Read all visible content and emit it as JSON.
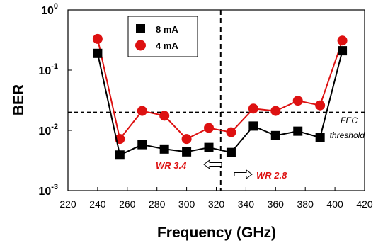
{
  "chart_data": {
    "type": "line",
    "xlabel": "Frequency (GHz)",
    "ylabel": "BER",
    "yscale": "log",
    "xlim": [
      220,
      420
    ],
    "ylim": [
      0.001,
      1
    ],
    "x_ticks": [
      220,
      240,
      260,
      280,
      300,
      320,
      340,
      360,
      380,
      400,
      420
    ],
    "y_ticks": [
      {
        "base": "10",
        "exp": "0",
        "value": 1
      },
      {
        "base": "10",
        "exp": "-1",
        "value": 0.1
      },
      {
        "base": "10",
        "exp": "-2",
        "value": 0.01
      },
      {
        "base": "10",
        "exp": "-3",
        "value": 0.001
      }
    ],
    "series": [
      {
        "name": "8 mA",
        "color": "#000000",
        "marker": "square",
        "points": [
          [
            240,
            0.19
          ],
          [
            255,
            0.0039
          ],
          [
            270,
            0.0058
          ],
          [
            285,
            0.0049
          ],
          [
            300,
            0.0044
          ],
          [
            315,
            0.0052
          ],
          [
            330,
            0.0043
          ],
          [
            345,
            0.0118
          ],
          [
            360,
            0.0082
          ],
          [
            375,
            0.0097
          ],
          [
            390,
            0.0076
          ],
          [
            405,
            0.21
          ]
        ]
      },
      {
        "name": "4 mA",
        "color": "#dd1111",
        "marker": "circle",
        "points": [
          [
            240,
            0.33
          ],
          [
            255,
            0.0072
          ],
          [
            270,
            0.021
          ],
          [
            285,
            0.0175
          ],
          [
            300,
            0.0072
          ],
          [
            315,
            0.011
          ],
          [
            330,
            0.0093
          ],
          [
            345,
            0.023
          ],
          [
            360,
            0.021
          ],
          [
            375,
            0.031
          ],
          [
            390,
            0.026
          ],
          [
            405,
            0.31
          ]
        ]
      }
    ],
    "threshold": {
      "value": 0.02,
      "label_line1": "FEC",
      "label_line2": "threshold"
    },
    "divider": {
      "x": 323
    },
    "annotations": {
      "left_band": {
        "text": "WR 3.4",
        "color": "#dd1111"
      },
      "right_band": {
        "text": "WR 2.8",
        "color": "#dd1111"
      }
    },
    "legend": {
      "placement": "top-left"
    }
  }
}
